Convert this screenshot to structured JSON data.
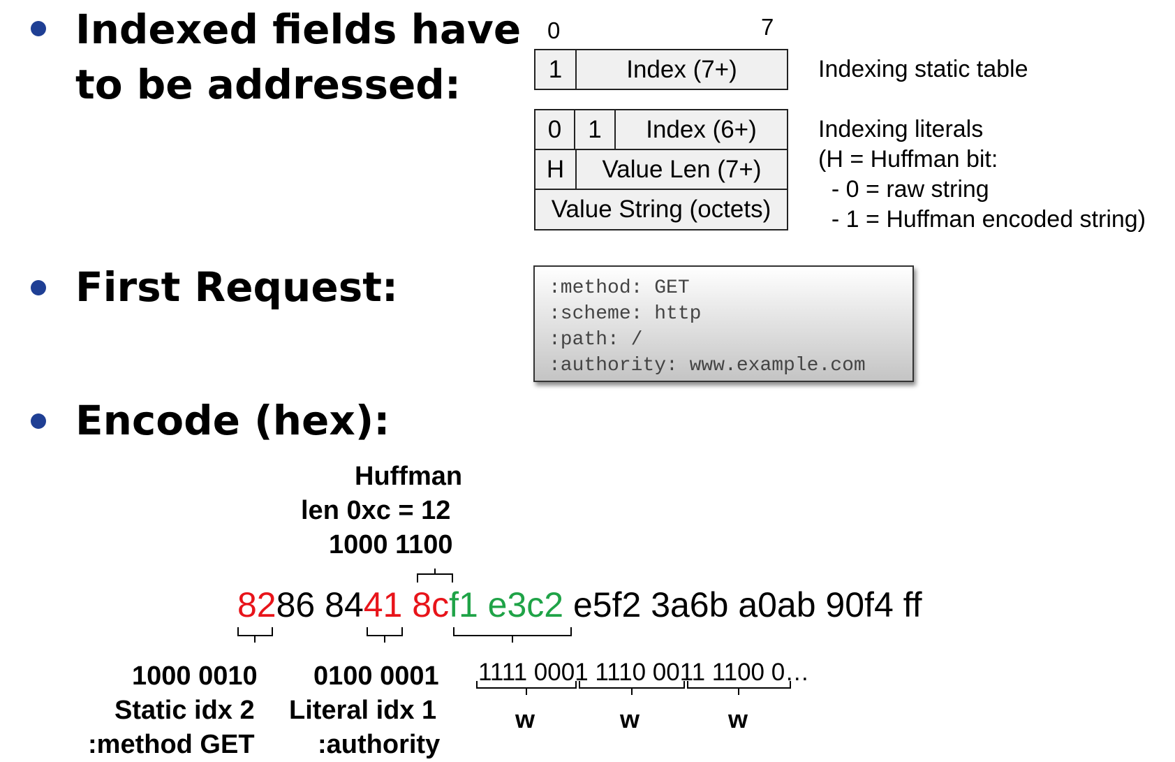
{
  "bullets": {
    "indexed_line1": "Indexed fields have",
    "indexed_line2": "to be addressed:",
    "first_request": "First Request:",
    "encode": "Encode (hex):"
  },
  "bit_labels": {
    "start": "0",
    "end": "7"
  },
  "static_table": {
    "bit": "1",
    "index": "Index (7+)",
    "caption": "Indexing static table"
  },
  "literal_table": {
    "bit0": "0",
    "bit1": "1",
    "index": "Index (6+)",
    "h": "H",
    "value_len": "Value Len (7+)",
    "value_string": "Value String (octets)",
    "caption": [
      "Indexing literals",
      "(H = Huffman bit:",
      "  - 0 = raw string",
      "  - 1 = Huffman encoded string)"
    ]
  },
  "request": [
    ":method: GET",
    ":scheme: http",
    ":path: /",
    ":authority: www.example.com"
  ],
  "huffman_note": [
    "Huffman",
    "len 0xc = 12",
    "1000 1100"
  ],
  "hex": {
    "seg1": "82",
    "seg2": "86 84",
    "seg3": "41",
    "seg4": " 8c",
    "seg5": "f1 e3c2",
    "seg6": " e5f2 3a6b a0ab 90f4 ff"
  },
  "notes": {
    "static": [
      "1000 0010",
      "Static idx 2",
      ":method GET"
    ],
    "literal": [
      "0100 0001",
      "Literal idx 1",
      ":authority"
    ]
  },
  "bits": "1111 0001 1110 0011 1100 0…",
  "w_labels": [
    "w",
    "w",
    "w"
  ],
  "colors": {
    "bullet": "#1f3f94",
    "red": "#e8141a",
    "green": "#1fa347"
  }
}
